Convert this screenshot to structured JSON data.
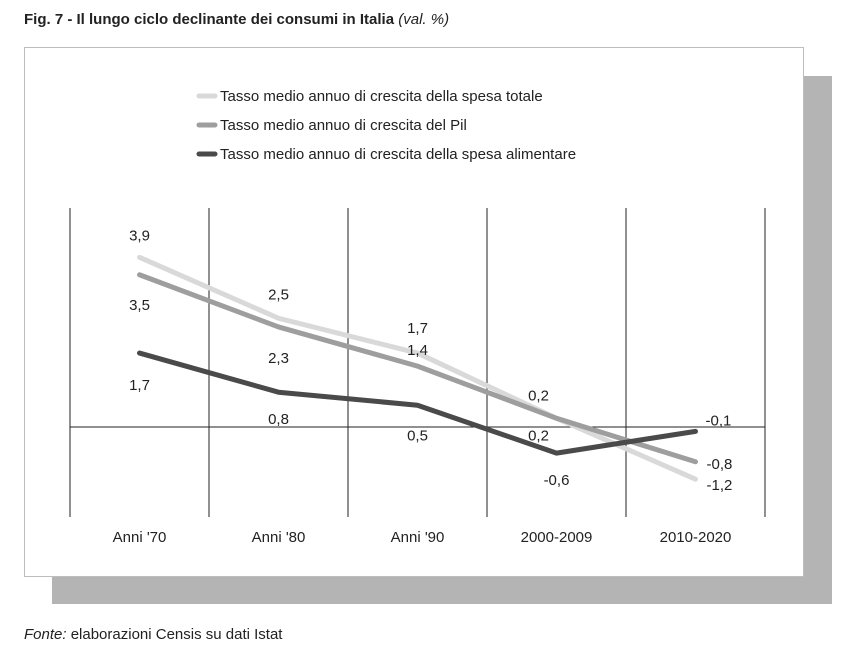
{
  "figure": {
    "title": "Fig. 7 - Il lungo ciclo declinante dei consumi in Italia",
    "unit_note": "(val. %)"
  },
  "source": {
    "label": "Fonte:",
    "text": " elaborazioni Censis su dati Istat"
  },
  "chart_data": {
    "type": "line",
    "categories": [
      "Anni '70",
      "Anni '80",
      "Anni '90",
      "2000-2009",
      "2010-2020"
    ],
    "series": [
      {
        "name": "Tasso medio annuo di crescita della spesa totale",
        "values": [
          3.9,
          2.5,
          1.7,
          0.2,
          -1.2
        ],
        "labels": [
          "3,9",
          "2,5",
          "1,7",
          "0,2",
          "-1,2"
        ],
        "color": "#d9d9d9"
      },
      {
        "name": "Tasso medio annuo di crescita del Pil",
        "values": [
          3.5,
          2.3,
          1.4,
          0.2,
          -0.8
        ],
        "labels": [
          "3,5",
          "2,3",
          "1,4",
          "0,2",
          "-0,8"
        ],
        "color": "#9e9e9e"
      },
      {
        "name": "Tasso medio annuo di crescita della spesa alimentare",
        "values": [
          1.7,
          0.8,
          0.5,
          -0.6,
          -0.1
        ],
        "labels": [
          "1,7",
          "0,8",
          "0,5",
          "-0,6",
          "-0,1"
        ],
        "color": "#4a4a4a"
      }
    ],
    "ylim": [
      -2.0,
      5.0
    ],
    "grid": "vertical",
    "legend": "top"
  }
}
